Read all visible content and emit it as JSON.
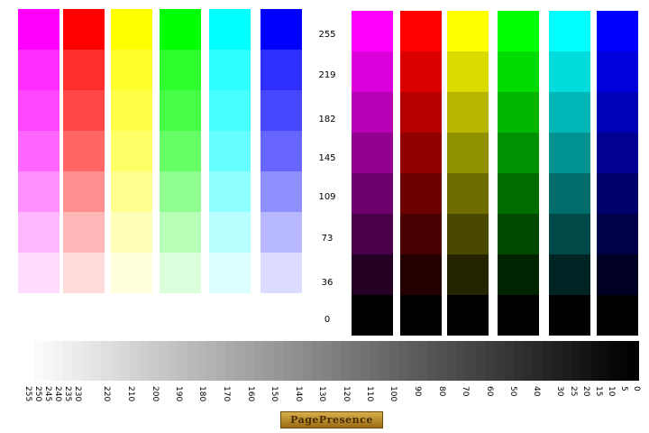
{
  "levels": [
    "255",
    "219",
    "182",
    "145",
    "109",
    "73",
    "36",
    "0"
  ],
  "tint_columns": [
    {
      "name": "magenta",
      "color": "#ff00ff"
    },
    {
      "name": "red",
      "color": "#ff0000"
    },
    {
      "name": "yellow",
      "color": "#ffff00"
    },
    {
      "name": "green",
      "color": "#00ff00"
    },
    {
      "name": "cyan",
      "color": "#00ffff"
    },
    {
      "name": "blue",
      "color": "#0000ff"
    }
  ],
  "shade_columns": [
    {
      "name": "magenta",
      "color": "#ff00ff"
    },
    {
      "name": "red",
      "color": "#ff0000"
    },
    {
      "name": "yellow",
      "color": "#ffff00"
    },
    {
      "name": "green",
      "color": "#00ff00"
    },
    {
      "name": "cyan",
      "color": "#00ffff"
    },
    {
      "name": "blue",
      "color": "#0000ff"
    }
  ],
  "grayscale_labels": [
    "255",
    "250",
    "245",
    "240",
    "235",
    "230",
    "220",
    "210",
    "200",
    "190",
    "180",
    "170",
    "160",
    "150",
    "140",
    "130",
    "120",
    "110",
    "100",
    "90",
    "80",
    "70",
    "60",
    "50",
    "40",
    "30",
    "25",
    "20",
    "15",
    "10",
    "5",
    "0"
  ],
  "logo_text": "PagePresence"
}
